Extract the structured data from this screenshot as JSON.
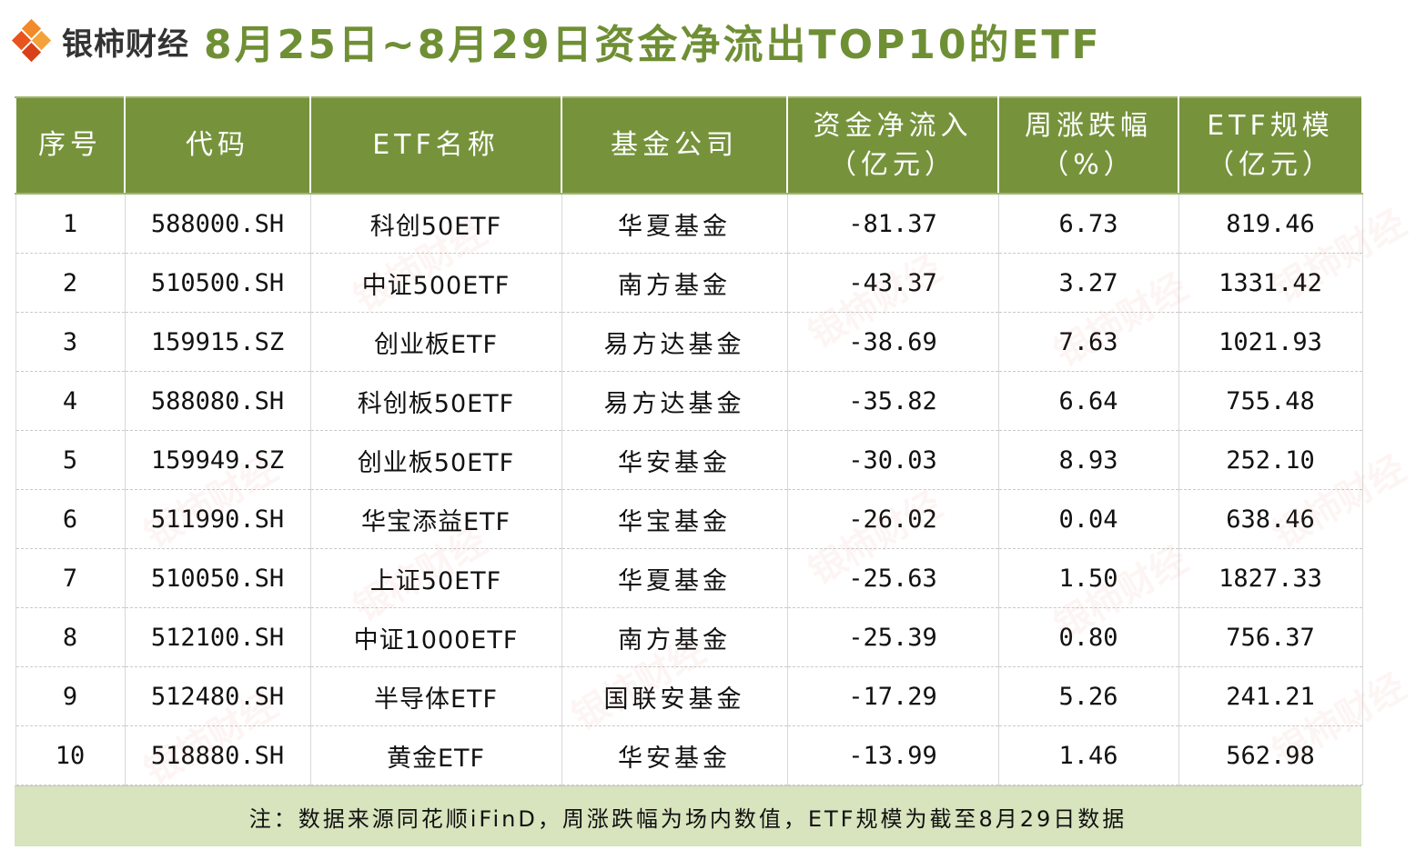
{
  "brand": {
    "logo_text": "银柿财经",
    "logo_icon": "diamond-logo-icon",
    "colors": {
      "logo_orange": "#e8541e",
      "title_green": "#6f8f34",
      "header_green": "#76933c",
      "note_bg": "#d7e4bd"
    }
  },
  "title": "8月25日~8月29日资金净流出TOP10的ETF",
  "table": {
    "headers": [
      {
        "line1": "序号",
        "line2": ""
      },
      {
        "line1": "代码",
        "line2": ""
      },
      {
        "line1": "ETF名称",
        "line2": ""
      },
      {
        "line1": "基金公司",
        "line2": ""
      },
      {
        "line1": "资金净流入",
        "line2": "（亿元）"
      },
      {
        "line1": "周涨跌幅",
        "line2": "（%）"
      },
      {
        "line1": "ETF规模",
        "line2": "（亿元）"
      }
    ],
    "rows": [
      {
        "no": "1",
        "code": "588000.SH",
        "name": "科创50ETF",
        "company": "华夏基金",
        "net_inflow": "-81.37",
        "weekly_change": "6.73",
        "scale": "819.46"
      },
      {
        "no": "2",
        "code": "510500.SH",
        "name": "中证500ETF",
        "company": "南方基金",
        "net_inflow": "-43.37",
        "weekly_change": "3.27",
        "scale": "1331.42"
      },
      {
        "no": "3",
        "code": "159915.SZ",
        "name": "创业板ETF",
        "company": "易方达基金",
        "net_inflow": "-38.69",
        "weekly_change": "7.63",
        "scale": "1021.93"
      },
      {
        "no": "4",
        "code": "588080.SH",
        "name": "科创板50ETF",
        "company": "易方达基金",
        "net_inflow": "-35.82",
        "weekly_change": "6.64",
        "scale": "755.48"
      },
      {
        "no": "5",
        "code": "159949.SZ",
        "name": "创业板50ETF",
        "company": "华安基金",
        "net_inflow": "-30.03",
        "weekly_change": "8.93",
        "scale": "252.10"
      },
      {
        "no": "6",
        "code": "511990.SH",
        "name": "华宝添益ETF",
        "company": "华宝基金",
        "net_inflow": "-26.02",
        "weekly_change": "0.04",
        "scale": "638.46"
      },
      {
        "no": "7",
        "code": "510050.SH",
        "name": "上证50ETF",
        "company": "华夏基金",
        "net_inflow": "-25.63",
        "weekly_change": "1.50",
        "scale": "1827.33"
      },
      {
        "no": "8",
        "code": "512100.SH",
        "name": "中证1000ETF",
        "company": "南方基金",
        "net_inflow": "-25.39",
        "weekly_change": "0.80",
        "scale": "756.37"
      },
      {
        "no": "9",
        "code": "512480.SH",
        "name": "半导体ETF",
        "company": "国联安基金",
        "net_inflow": "-17.29",
        "weekly_change": "5.26",
        "scale": "241.21"
      },
      {
        "no": "10",
        "code": "518880.SH",
        "name": "黄金ETF",
        "company": "华安基金",
        "net_inflow": "-13.99",
        "weekly_change": "1.46",
        "scale": "562.98"
      }
    ]
  },
  "note": "注：数据来源同花顺iFinD，周涨跌幅为场内数值，ETF规模为截至8月29日数据",
  "watermark_text": "银柿财经"
}
